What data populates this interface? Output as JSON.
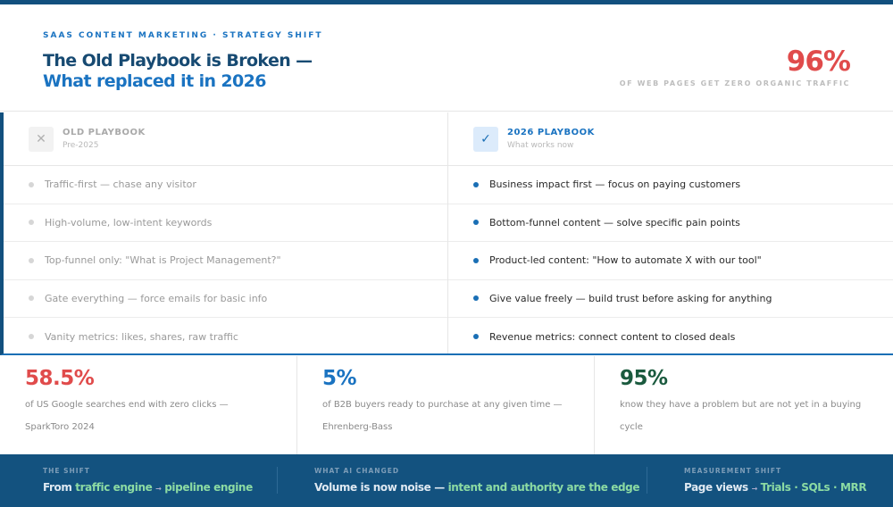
{
  "header": {
    "eyebrow": "SAAS CONTENT MARKETING · STRATEGY SHIFT",
    "title_line1": "The Old Playbook is Broken —",
    "title_line2": "What replaced it in 2026",
    "big_stat": "96%",
    "big_stat_label": "OF WEB PAGES GET ZERO ORGANIC TRAFFIC"
  },
  "old": {
    "icon": "x-icon",
    "title": "OLD PLAYBOOK",
    "subtitle": "Pre-2025",
    "items": [
      "Traffic-first — chase any visitor",
      "High-volume, low-intent keywords",
      "Top-funnel only: \"What is Project Management?\"",
      "Gate everything — force emails for basic info",
      "Vanity metrics: likes, shares, raw traffic"
    ]
  },
  "new": {
    "icon": "check-icon",
    "title": "2026 PLAYBOOK",
    "subtitle": "What works now",
    "items": [
      "Business impact first — focus on paying customers",
      "Bottom-funnel content — solve specific pain points",
      "Product-led content: \"How to automate X with our tool\"",
      "Give value freely — build trust before asking for anything",
      "Revenue metrics: connect content to closed deals"
    ]
  },
  "stats": [
    {
      "value": "58.5%",
      "text": "of US Google searches end with zero clicks — SparkToro 2024",
      "color": "#e04b4b"
    },
    {
      "value": "5%",
      "text": "of B2B buyers ready to purchase at any given time — Ehrenberg-Bass",
      "color": "#1a73c1"
    },
    {
      "value": "95%",
      "text": "know they have a problem but are not yet in a buying cycle",
      "color": "#1a5a3e"
    }
  ],
  "footer": {
    "shift": {
      "label": "THE SHIFT",
      "prefix": "From",
      "from": "traffic engine",
      "arrow": "→",
      "to": "pipeline engine"
    },
    "ai": {
      "label": "WHAT AI CHANGED",
      "prefix": "Volume is now noise —",
      "highlight": "intent and authority are the edge"
    },
    "measure": {
      "label": "MEASUREMENT SHIFT",
      "prefix": "Page views",
      "arrow": "→",
      "highlight": "Trials · SQLs · MRR"
    }
  },
  "colors": {
    "navy": "#12507e",
    "blue": "#1a73c1",
    "red": "#e04b4b",
    "green": "#8cdba3"
  }
}
